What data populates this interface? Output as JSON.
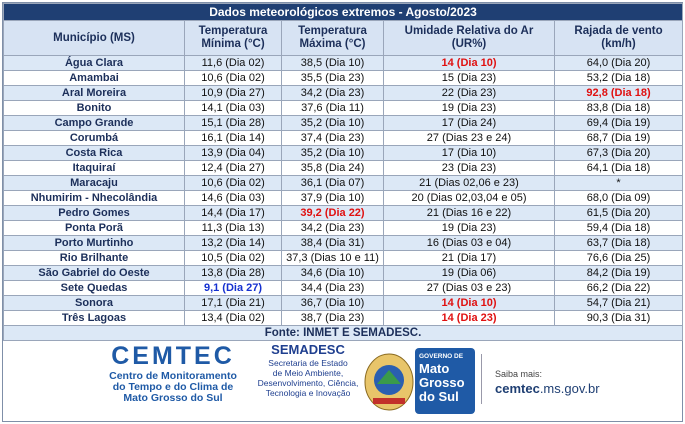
{
  "table": {
    "title": "Dados meteorológicos extremos - Agosto/2023",
    "headers": [
      [
        "Município (MS)"
      ],
      [
        "Temperatura",
        "Mínima (°C)"
      ],
      [
        "Temperatura",
        "Máxima (°C)"
      ],
      [
        "Umidade Relativa do Ar",
        "(UR%)"
      ],
      [
        "Rajada de vento",
        "(km/h)"
      ]
    ],
    "rows": [
      [
        "Água Clara",
        "11,6 (Dia 02)",
        "38,5 (Dia 10)",
        "14 (Dia 10)",
        "64,0 (Dia 20)"
      ],
      [
        "Amambai",
        "10,6 (Dia 02)",
        "35,5 (Dia 23)",
        "15 (Dia 23)",
        "53,2 (Dia 18)"
      ],
      [
        "Aral Moreira",
        "10,9 (Dia 27)",
        "34,2 (Dia 23)",
        "22 (Dia 23)",
        "92,8 (Dia 18)"
      ],
      [
        "Bonito",
        "14,1 (Dia 03)",
        "37,6 (Dia 11)",
        "19 (Dia 23)",
        "83,8 (Dia 18)"
      ],
      [
        "Campo Grande",
        "15,1 (Dia 28)",
        "35,2 (Dia 10)",
        "17 (Dia 24)",
        "69,4 (Dia 19)"
      ],
      [
        "Corumbá",
        "16,1 (Dia 14)",
        "37,4 (Dia 23)",
        "27 (Dias 23 e 24)",
        "68,7 (Dia 19)"
      ],
      [
        "Costa Rica",
        "13,9 (Dia 04)",
        "35,2 (Dia 10)",
        "17 (Dia 10)",
        "67,3 (Dia 20)"
      ],
      [
        "Itaquiraí",
        "12,4 (Dia 27)",
        "35,8 (Dia 24)",
        "23 (Dia 23)",
        "64,1 (Dia 18)"
      ],
      [
        "Maracaju",
        "10,6 (Dia 02)",
        "36,1 (Dia 07)",
        "21 (Dias 02,06 e 23)",
        "*"
      ],
      [
        "Nhumirim - Nhecolândia",
        "14,6 (Dia 03)",
        "37,9 (Dia 10)",
        "20 (Dias 02,03,04 e 05)",
        "68,0 (Dia 09)"
      ],
      [
        "Pedro Gomes",
        "14,4 (Dia 17)",
        "39,2 (Dia 22)",
        "21 (Dias 16 e 22)",
        "61,5 (Dia 20)"
      ],
      [
        "Ponta Porã",
        "11,3 (Dia 13)",
        "34,2 (Dia 23)",
        "19 (Dia 23)",
        "59,4 (Dia 18)"
      ],
      [
        "Porto Murtinho",
        "13,2 (Dia 14)",
        "38,4 (Dia 31)",
        "16 (Dias 03 e 04)",
        "63,7 (Dia 18)"
      ],
      [
        "Rio Brilhante",
        "10,5 (Dia 02)",
        "37,3 (Dias 10 e 11)",
        "21 (Dia 17)",
        "76,6 (Dia 25)"
      ],
      [
        "São Gabriel do Oeste",
        "13,8 (Dia 28)",
        "34,6 (Dia 10)",
        "19 (Dia 06)",
        "84,2 (Dia 19)"
      ],
      [
        "Sete Quedas",
        "9,1 (Dia 27)",
        "34,4 (Dia 23)",
        "27 (Dias 03 e 23)",
        "66,2 (Dia 22)"
      ],
      [
        "Sonora",
        "17,1 (Dia 21)",
        "36,7 (Dia 10)",
        "14 (Dia 10)",
        "54,7 (Dia 21)"
      ],
      [
        "Três Lagoas",
        "13,4 (Dia 02)",
        "38,7 (Dia 23)",
        "14 (Dia 23)",
        "90,3 (Dia 31)"
      ]
    ],
    "source": "Fonte: INMET E SEMADESC."
  },
  "footer": {
    "cemtec": {
      "name": "CEMTEC",
      "lines": [
        "Centro de Monitoramento",
        "do Tempo e do Clima de",
        "Mato Grosso do Sul"
      ]
    },
    "semadesc": {
      "name": "SEMADESC",
      "lines": [
        "Secretaria de Estado",
        "de Meio Ambiente,",
        "Desenvolvimento, Ciência,",
        "Tecnologia e Inovação"
      ]
    },
    "government": {
      "label": "GOVERNO DE",
      "lines": [
        "Mato",
        "Grosso",
        "do Sul"
      ]
    },
    "more": {
      "label": "Saiba mais:",
      "site": "cemtec",
      "domain": ".ms.gov.br"
    }
  }
}
